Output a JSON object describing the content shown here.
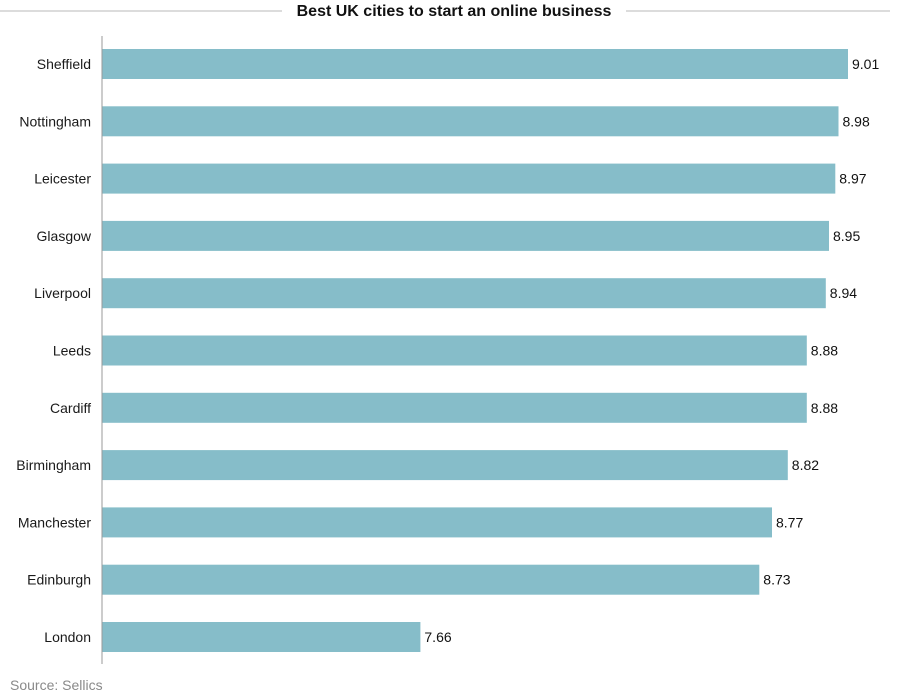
{
  "chart_data": {
    "type": "bar",
    "orientation": "horizontal",
    "title": "Best UK cities to start an online business",
    "categories": [
      "Sheffield",
      "Nottingham",
      "Leicester",
      "Glasgow",
      "Liverpool",
      "Leeds",
      "Cardiff",
      "Birmingham",
      "Manchester",
      "Edinburgh",
      "London"
    ],
    "values": [
      9.01,
      8.98,
      8.97,
      8.95,
      8.94,
      8.88,
      8.88,
      8.82,
      8.77,
      8.73,
      7.66
    ],
    "value_labels": [
      "9.01",
      "8.98",
      "8.97",
      "8.95",
      "8.94",
      "8.88",
      "8.88",
      "8.82",
      "8.77",
      "8.73",
      "7.66"
    ],
    "xlim": [
      6.655,
      9.01
    ],
    "grid": false,
    "legend": "none",
    "bar_color": "#86bdc9",
    "source": "Source: Sellics"
  }
}
